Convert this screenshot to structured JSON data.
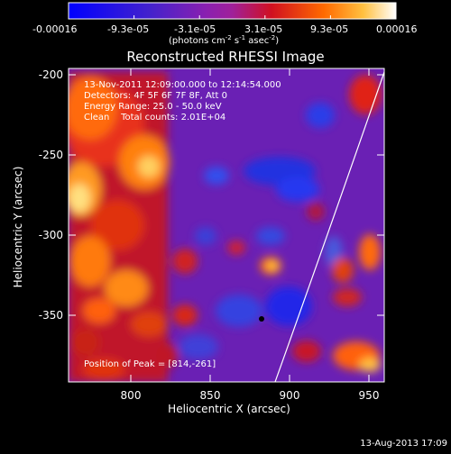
{
  "colorbar": {
    "ticks": [
      "-0.00016",
      "-9.3e-05",
      "-3.1e-05",
      "3.1e-05",
      "9.3e-05",
      "0.00016"
    ],
    "units_prefix": "(photons cm",
    "units_sup1": "-2",
    "units_mid": " s",
    "units_sup2": "-1",
    "units_mid2": " asec",
    "units_sup3": "-2",
    "units_suffix": ")"
  },
  "plot": {
    "title": "Reconstructed RHESSI Image",
    "info_line1": "13-Nov-2011 12:09:00.000 to 12:14:54.000",
    "info_line2": "Detectors: 4F 5F 6F 7F 8F, Att 0",
    "info_line3": "Energy Range: 25.0 - 50.0 keV",
    "info_line4": "Clean    Total counts: 2.01E+04",
    "peak_label": "Position of Peak = [814,-261]",
    "xlabel": "Heliocentric X (arcsec)",
    "ylabel": "Heliocentric Y (arcsec)",
    "xticks": [
      {
        "label": "800",
        "value": 800
      },
      {
        "label": "850",
        "value": 850
      },
      {
        "label": "900",
        "value": 900
      },
      {
        "label": "950",
        "value": 950
      }
    ],
    "yticks": [
      {
        "label": "-200",
        "value": -200
      },
      {
        "label": "-250",
        "value": -250
      },
      {
        "label": "-300",
        "value": -300
      },
      {
        "label": "-350",
        "value": -350
      }
    ],
    "xlim": [
      764,
      963
    ],
    "ylim": [
      -389,
      -196
    ]
  },
  "footer": {
    "timestamp": "13-Aug-2013 17:09"
  }
}
